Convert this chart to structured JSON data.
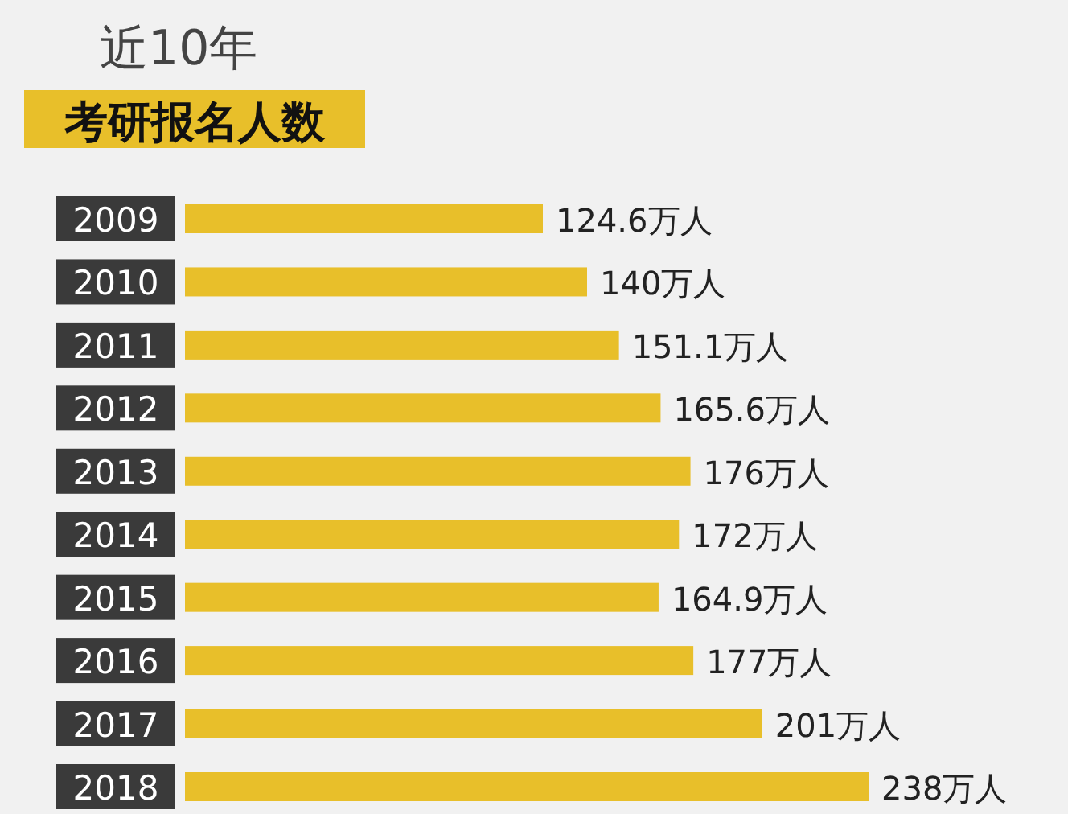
{
  "chart_data": {
    "type": "bar",
    "orientation": "horizontal",
    "title": "近10年",
    "subtitle": "考研报名人数",
    "categories": [
      "2009",
      "2010",
      "2011",
      "2012",
      "2013",
      "2014",
      "2015",
      "2016",
      "2017",
      "2018"
    ],
    "values": [
      124.6,
      140,
      151.1,
      165.6,
      176,
      172,
      164.9,
      177,
      201,
      238
    ],
    "value_labels": [
      "124.6万人",
      "140万人",
      "151.1万人",
      "165.6万人",
      "176万人",
      "172万人",
      "164.9万人",
      "177万人",
      "201万人",
      "238万人"
    ],
    "color": "#e8bf2a"
  }
}
